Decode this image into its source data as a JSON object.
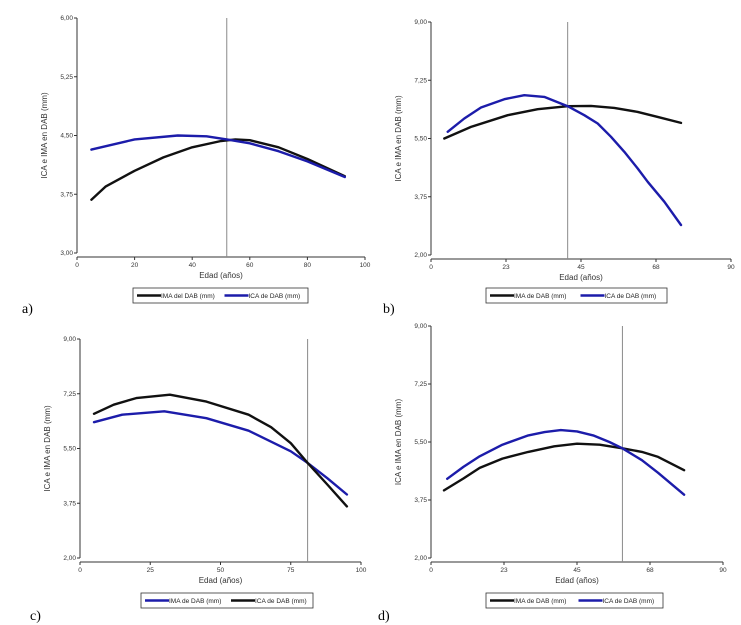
{
  "chart_data": [
    {
      "type": "line",
      "panel_label": "a)",
      "xlabel": "Edad (años)",
      "ylabel": "ICA e IMA en DAB (mm)",
      "xlim": [
        0,
        100
      ],
      "ylim": [
        3,
        6
      ],
      "xticks": [
        0,
        20,
        40,
        60,
        80,
        100
      ],
      "xtick_labels": [
        "0",
        "20",
        "40",
        "60",
        "80",
        "100"
      ],
      "yticks": [
        3,
        3.75,
        4.5,
        5.25,
        6
      ],
      "ytick_labels": [
        "3,00",
        "3,75",
        "4,50",
        "5,25",
        "6,00"
      ],
      "vline_x": 52,
      "grid": false,
      "legend": "bottom",
      "series": [
        {
          "name": "IMA del DAB (mm)",
          "color": "#111111",
          "x": [
            5,
            10,
            20,
            30,
            40,
            50,
            55,
            60,
            70,
            80,
            93
          ],
          "y": [
            3.68,
            3.85,
            4.05,
            4.22,
            4.35,
            4.43,
            4.45,
            4.44,
            4.35,
            4.2,
            3.98
          ]
        },
        {
          "name": "ICA de DAB (mm)",
          "color": "#1c1caa",
          "x": [
            5,
            20,
            35,
            45,
            52,
            60,
            70,
            80,
            93
          ],
          "y": [
            4.32,
            4.45,
            4.5,
            4.49,
            4.45,
            4.4,
            4.3,
            4.17,
            3.97
          ]
        }
      ]
    },
    {
      "type": "line",
      "panel_label": "b)",
      "xlabel": "Edad (años)",
      "ylabel": "ICA e IMA en DAB (mm)",
      "xlim": [
        0,
        90
      ],
      "ylim": [
        2,
        9
      ],
      "xticks": [
        0,
        22.5,
        45,
        67.5,
        90
      ],
      "xtick_labels": [
        "0",
        "23",
        "45",
        "68",
        "90"
      ],
      "yticks": [
        2,
        3.75,
        5.5,
        7.25,
        9
      ],
      "ytick_labels": [
        "2,00",
        "3,75",
        "5,50",
        "7,25",
        "9,00"
      ],
      "vline_x": 41,
      "grid": false,
      "legend": "bottom",
      "series": [
        {
          "name": "IMA de DAB (mm)",
          "color": "#111111",
          "x": [
            4,
            12,
            23,
            32,
            41,
            48,
            55,
            62,
            68,
            75
          ],
          "y": [
            5.5,
            5.85,
            6.2,
            6.38,
            6.47,
            6.48,
            6.42,
            6.3,
            6.15,
            5.97
          ]
        },
        {
          "name": "ICA de DAB (mm)",
          "color": "#1c1caa",
          "x": [
            5,
            10,
            15,
            22,
            28,
            34,
            41,
            46,
            50,
            54,
            58,
            62,
            65,
            70,
            75
          ],
          "y": [
            5.7,
            6.1,
            6.43,
            6.68,
            6.8,
            6.75,
            6.47,
            6.2,
            5.95,
            5.55,
            5.1,
            4.6,
            4.2,
            3.6,
            2.9
          ]
        }
      ]
    },
    {
      "type": "line",
      "panel_label": "c)",
      "xlabel": "Edad (años)",
      "ylabel": "ICA e IMA en DAB (mm)",
      "xlim": [
        0,
        100
      ],
      "ylim": [
        2,
        9
      ],
      "xticks": [
        0,
        25,
        50,
        75,
        100
      ],
      "xtick_labels": [
        "0",
        "25",
        "50",
        "75",
        "100"
      ],
      "yticks": [
        2,
        3.75,
        5.5,
        7.25,
        9
      ],
      "ytick_labels": [
        "2,00",
        "3,75",
        "5,50",
        "7,25",
        "9,00"
      ],
      "vline_x": 81,
      "grid": false,
      "legend": "bottom",
      "series": [
        {
          "name": "IMA de DAB (mm)",
          "color": "#1c1caa",
          "x": [
            5,
            15,
            30,
            45,
            60,
            75,
            81,
            88,
            95
          ],
          "y": [
            6.34,
            6.58,
            6.69,
            6.47,
            6.07,
            5.41,
            5.04,
            4.55,
            4.03
          ]
        },
        {
          "name": "ICA de DAB (mm)",
          "color": "#111111",
          "x": [
            5,
            12,
            20,
            32,
            45,
            60,
            68,
            75,
            81,
            88,
            95
          ],
          "y": [
            6.61,
            6.9,
            7.11,
            7.22,
            7.0,
            6.58,
            6.18,
            5.67,
            5.04,
            4.35,
            3.65
          ]
        }
      ]
    },
    {
      "type": "line",
      "panel_label": "d)",
      "xlabel": "Edad (años)",
      "ylabel": "ICA e IMA en DAB (mm)",
      "xlim": [
        0,
        90
      ],
      "ylim": [
        2,
        9
      ],
      "xticks": [
        0,
        22.5,
        45,
        67.5,
        90
      ],
      "xtick_labels": [
        "0",
        "23",
        "45",
        "68",
        "90"
      ],
      "yticks": [
        2,
        3.75,
        5.5,
        7.25,
        9
      ],
      "ytick_labels": [
        "2,00",
        "3,75",
        "5,50",
        "7,25",
        "9,00"
      ],
      "vline_x": 59,
      "grid": false,
      "legend": "bottom",
      "series": [
        {
          "name": "IMA de DAB (mm)",
          "color": "#111111",
          "x": [
            4,
            10,
            15,
            22,
            30,
            38,
            45,
            52,
            59,
            65,
            70,
            78
          ],
          "y": [
            4.04,
            4.4,
            4.72,
            5.0,
            5.2,
            5.37,
            5.45,
            5.42,
            5.31,
            5.2,
            5.05,
            4.65
          ]
        },
        {
          "name": "ICA de DAB (mm)",
          "color": "#1c1caa",
          "x": [
            5,
            10,
            15,
            22,
            30,
            35,
            40,
            45,
            50,
            55,
            59,
            65,
            70,
            78
          ],
          "y": [
            4.39,
            4.75,
            5.07,
            5.42,
            5.7,
            5.8,
            5.86,
            5.82,
            5.7,
            5.5,
            5.31,
            4.95,
            4.57,
            3.91
          ]
        }
      ]
    }
  ]
}
